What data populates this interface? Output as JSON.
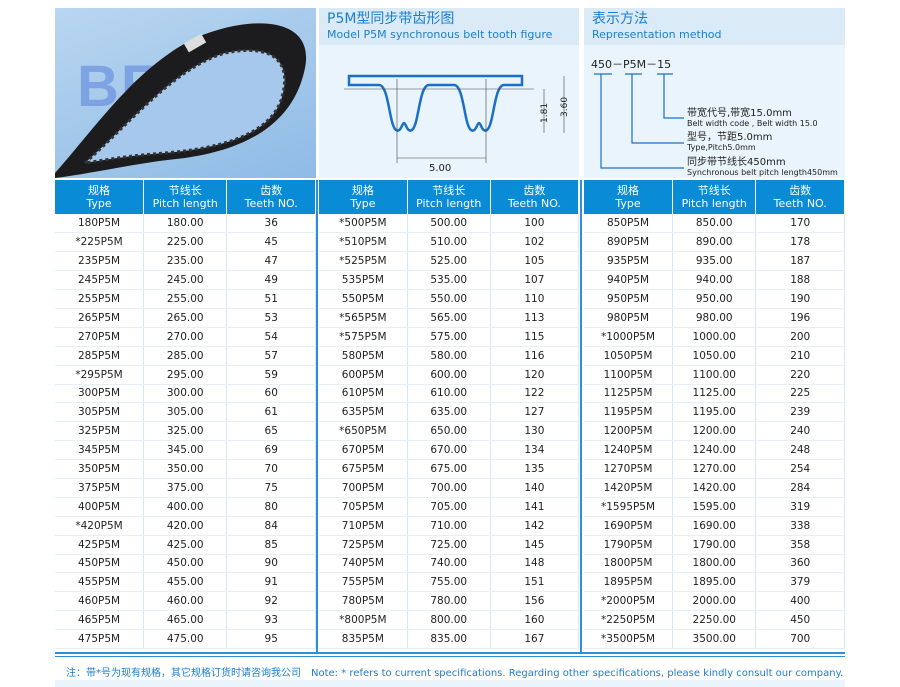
{
  "watermark": "BEIDI",
  "figure": {
    "title_cn": "P5M型同步带齿形图",
    "title_en": "Model P5M synchronous belt tooth figure",
    "dim_pitch": "5.00",
    "dim_tooth": "1.81",
    "dim_total": "3.60"
  },
  "representation": {
    "title_cn": "表示方法",
    "title_en": "Representation method",
    "code": "450－P5M－15",
    "items": [
      {
        "cn": "带宽代号,带宽15.0mm",
        "en": "Belt width code , Belt width 15.0"
      },
      {
        "cn": "型号，节距5.0mm",
        "en": "Type,Pitch5.0mm"
      },
      {
        "cn": "同步带节线长450mm",
        "en": "Synchronous belt pitch length450mm"
      }
    ]
  },
  "headers": [
    {
      "cn": "规格",
      "en": "Type"
    },
    {
      "cn": "节线长",
      "en": "Pitch length"
    },
    {
      "cn": "齿数",
      "en": "Teeth NO."
    }
  ],
  "tables": [
    [
      [
        "180P5M",
        "180.00",
        "36"
      ],
      [
        "*225P5M",
        "225.00",
        "45"
      ],
      [
        "235P5M",
        "235.00",
        "47"
      ],
      [
        "245P5M",
        "245.00",
        "49"
      ],
      [
        "255P5M",
        "255.00",
        "51"
      ],
      [
        "265P5M",
        "265.00",
        "53"
      ],
      [
        "270P5M",
        "270.00",
        "54"
      ],
      [
        "285P5M",
        "285.00",
        "57"
      ],
      [
        "*295P5M",
        "295.00",
        "59"
      ],
      [
        "300P5M",
        "300.00",
        "60"
      ],
      [
        "305P5M",
        "305.00",
        "61"
      ],
      [
        "325P5M",
        "325.00",
        "65"
      ],
      [
        "345P5M",
        "345.00",
        "69"
      ],
      [
        "350P5M",
        "350.00",
        "70"
      ],
      [
        "375P5M",
        "375.00",
        "75"
      ],
      [
        "400P5M",
        "400.00",
        "80"
      ],
      [
        "*420P5M",
        "420.00",
        "84"
      ],
      [
        "425P5M",
        "425.00",
        "85"
      ],
      [
        "450P5M",
        "450.00",
        "90"
      ],
      [
        "455P5M",
        "455.00",
        "91"
      ],
      [
        "460P5M",
        "460.00",
        "92"
      ],
      [
        "465P5M",
        "465.00",
        "93"
      ],
      [
        "475P5M",
        "475.00",
        "95"
      ]
    ],
    [
      [
        "*500P5M",
        "500.00",
        "100"
      ],
      [
        "*510P5M",
        "510.00",
        "102"
      ],
      [
        "*525P5M",
        "525.00",
        "105"
      ],
      [
        "535P5M",
        "535.00",
        "107"
      ],
      [
        "550P5M",
        "550.00",
        "110"
      ],
      [
        "*565P5M",
        "565.00",
        "113"
      ],
      [
        "*575P5M",
        "575.00",
        "115"
      ],
      [
        "580P5M",
        "580.00",
        "116"
      ],
      [
        "600P5M",
        "600.00",
        "120"
      ],
      [
        "610P5M",
        "610.00",
        "122"
      ],
      [
        "635P5M",
        "635.00",
        "127"
      ],
      [
        "*650P5M",
        "650.00",
        "130"
      ],
      [
        "670P5M",
        "670.00",
        "134"
      ],
      [
        "675P5M",
        "675.00",
        "135"
      ],
      [
        "700P5M",
        "700.00",
        "140"
      ],
      [
        "705P5M",
        "705.00",
        "141"
      ],
      [
        "710P5M",
        "710.00",
        "142"
      ],
      [
        "725P5M",
        "725.00",
        "145"
      ],
      [
        "740P5M",
        "740.00",
        "148"
      ],
      [
        "755P5M",
        "755.00",
        "151"
      ],
      [
        "780P5M",
        "780.00",
        "156"
      ],
      [
        "*800P5M",
        "800.00",
        "160"
      ],
      [
        "835P5M",
        "835.00",
        "167"
      ]
    ],
    [
      [
        "850P5M",
        "850.00",
        "170"
      ],
      [
        "890P5M",
        "890.00",
        "178"
      ],
      [
        "935P5M",
        "935.00",
        "187"
      ],
      [
        "940P5M",
        "940.00",
        "188"
      ],
      [
        "950P5M",
        "950.00",
        "190"
      ],
      [
        "980P5M",
        "980.00",
        "196"
      ],
      [
        "*1000P5M",
        "1000.00",
        "200"
      ],
      [
        "1050P5M",
        "1050.00",
        "210"
      ],
      [
        "1100P5M",
        "1100.00",
        "220"
      ],
      [
        "1125P5M",
        "1125.00",
        "225"
      ],
      [
        "1195P5M",
        "1195.00",
        "239"
      ],
      [
        "1200P5M",
        "1200.00",
        "240"
      ],
      [
        "1240P5M",
        "1240.00",
        "248"
      ],
      [
        "1270P5M",
        "1270.00",
        "254"
      ],
      [
        "1420P5M",
        "1420.00",
        "284"
      ],
      [
        "*1595P5M",
        "1595.00",
        "319"
      ],
      [
        "1690P5M",
        "1690.00",
        "338"
      ],
      [
        "1790P5M",
        "1790.00",
        "358"
      ],
      [
        "1800P5M",
        "1800.00",
        "360"
      ],
      [
        "1895P5M",
        "1895.00",
        "379"
      ],
      [
        "*2000P5M",
        "2000.00",
        "400"
      ],
      [
        "*2250P5M",
        "2250.00",
        "450"
      ],
      [
        "*3500P5M",
        "3500.00",
        "700"
      ]
    ]
  ],
  "note": {
    "cn": "注：带*号为现有规格，其它规格订货时请咨询我公司",
    "en": "Note:  * refers to current specifications.  Regarding other specifications, please kindly consult our company."
  },
  "colors": {
    "accent": "#0a8bd6",
    "text_blue": "#1a7fd0"
  }
}
